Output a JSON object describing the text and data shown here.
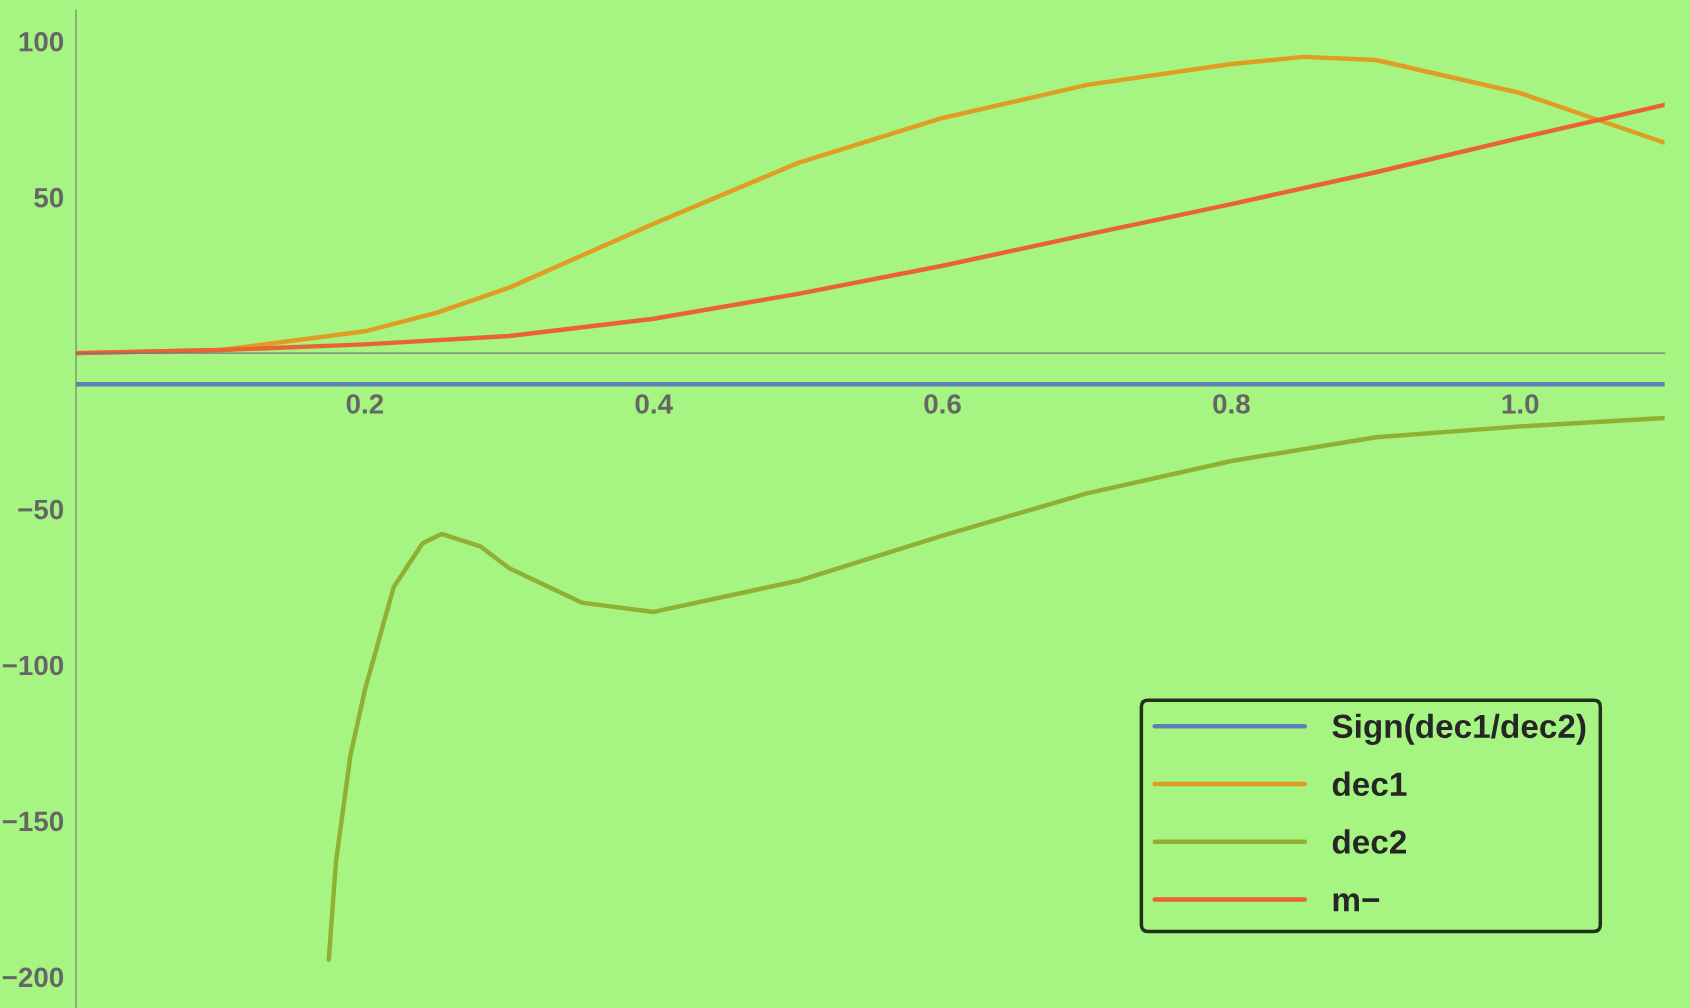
{
  "chart_data": {
    "type": "line",
    "xlim": [
      0,
      1.1
    ],
    "ylim": [
      -210,
      110
    ],
    "xticks": [
      0.2,
      0.4,
      0.6,
      0.8,
      {
        "value": 1.0,
        "label": "1.0"
      }
    ],
    "yticks": [
      -200,
      -150,
      -100,
      -50,
      50,
      100
    ],
    "grid": false,
    "legend": "bottom right",
    "marker": "none",
    "line_style": "solid",
    "series": [
      {
        "name": "Sign(dec1/dec2)",
        "color": "#5e81b5",
        "x": [
          0,
          1.1
        ],
        "values": [
          -10,
          -10
        ]
      },
      {
        "name": "dec1",
        "color": "#e19c24",
        "x": [
          0,
          0.1,
          0.2,
          0.25,
          0.3,
          0.4,
          0.5,
          0.6,
          0.7,
          0.8,
          0.85,
          0.9,
          1.0,
          1.05,
          1.1
        ],
        "values": [
          0,
          1,
          7,
          13,
          21,
          41.5,
          61,
          75.4,
          86,
          92.7,
          95,
          94,
          83.4,
          75.4,
          67.5
        ]
      },
      {
        "name": "dec2",
        "color": "#8fb032",
        "x": [
          0.175,
          0.18,
          0.19,
          0.2,
          0.22,
          0.24,
          0.253,
          0.28,
          0.3,
          0.35,
          0.4,
          0.5,
          0.6,
          0.7,
          0.8,
          0.9,
          1.0,
          1.1
        ],
        "values": [
          -194.5,
          -163,
          -129,
          -108,
          -75,
          -61,
          -58,
          -62,
          -69,
          -80,
          -83,
          -73,
          -58.5,
          -45,
          -34.6,
          -27,
          -23.5,
          -20.8
        ]
      },
      {
        "name": "m−",
        "color": "#eb6235",
        "x": [
          0,
          0.1,
          0.2,
          0.3,
          0.4,
          0.5,
          0.6,
          0.7,
          0.8,
          0.9,
          1.0,
          1.1
        ],
        "values": [
          0,
          1,
          2.8,
          5.5,
          11,
          19,
          28,
          38,
          47.8,
          58,
          69,
          79.6
        ]
      }
    ]
  }
}
